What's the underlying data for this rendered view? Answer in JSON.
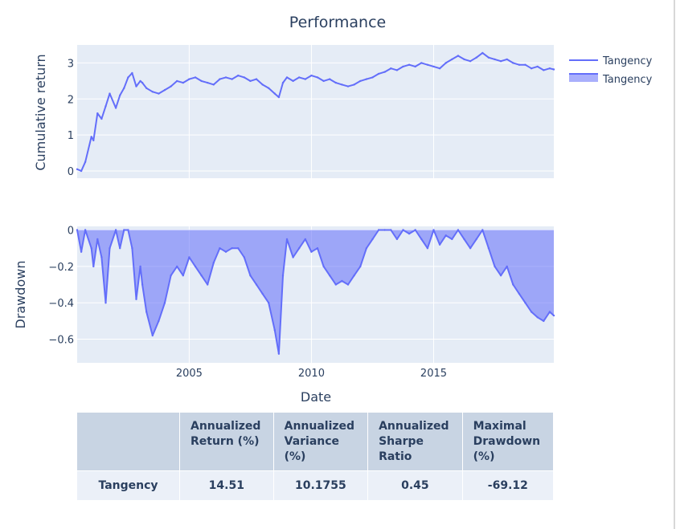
{
  "title": "Performance",
  "colors": {
    "line": "#636efa",
    "fill": "rgba(99,110,250,0.55)",
    "plot_bg": "#e5ecf6",
    "grid": "#ffffff",
    "header_bg": "#c8d4e3",
    "cell_bg": "#ebf0f8"
  },
  "legend": [
    {
      "name": "Tangency",
      "icon": "line-legend-icon"
    },
    {
      "name": "Tangency",
      "icon": "area-legend-icon"
    }
  ],
  "chart_data": [
    {
      "type": "line",
      "ylabel": "Cumulative return",
      "xlabel": "",
      "xlim": [
        "2000-06",
        "2019-12"
      ],
      "ylim": [
        -0.2,
        3.5
      ],
      "yticks": [
        0,
        1,
        2,
        3
      ],
      "series": [
        {
          "name": "Tangency",
          "x": [
            "2000-06",
            "2000-08",
            "2000-10",
            "2001-01",
            "2001-02",
            "2001-04",
            "2001-06",
            "2001-08",
            "2001-10",
            "2002-01",
            "2002-03",
            "2002-05",
            "2002-07",
            "2002-09",
            "2002-11",
            "2003-01",
            "2003-02",
            "2003-04",
            "2003-07",
            "2003-10",
            "2004-01",
            "2004-04",
            "2004-07",
            "2004-10",
            "2005-01",
            "2005-04",
            "2005-07",
            "2005-10",
            "2006-01",
            "2006-04",
            "2006-07",
            "2006-10",
            "2007-01",
            "2007-04",
            "2007-07",
            "2007-10",
            "2008-01",
            "2008-04",
            "2008-07",
            "2008-09",
            "2008-11",
            "2009-01",
            "2009-04",
            "2009-07",
            "2009-10",
            "2010-01",
            "2010-04",
            "2010-07",
            "2010-10",
            "2011-01",
            "2011-04",
            "2011-07",
            "2011-10",
            "2012-01",
            "2012-04",
            "2012-07",
            "2012-10",
            "2013-01",
            "2013-04",
            "2013-07",
            "2013-10",
            "2014-01",
            "2014-04",
            "2014-07",
            "2014-10",
            "2015-01",
            "2015-04",
            "2015-07",
            "2015-10",
            "2016-01",
            "2016-04",
            "2016-07",
            "2016-10",
            "2017-01",
            "2017-04",
            "2017-07",
            "2017-10",
            "2018-01",
            "2018-04",
            "2018-07",
            "2018-10",
            "2019-01",
            "2019-04",
            "2019-07",
            "2019-10",
            "2019-12"
          ],
          "y": [
            0.05,
            0.0,
            0.25,
            0.95,
            0.85,
            1.6,
            1.45,
            1.8,
            2.15,
            1.75,
            2.1,
            2.3,
            2.6,
            2.72,
            2.35,
            2.5,
            2.45,
            2.3,
            2.2,
            2.15,
            2.25,
            2.35,
            2.5,
            2.45,
            2.55,
            2.6,
            2.5,
            2.45,
            2.4,
            2.55,
            2.6,
            2.55,
            2.65,
            2.6,
            2.5,
            2.55,
            2.4,
            2.3,
            2.15,
            2.05,
            2.45,
            2.6,
            2.5,
            2.6,
            2.55,
            2.65,
            2.6,
            2.5,
            2.55,
            2.45,
            2.4,
            2.35,
            2.4,
            2.5,
            2.55,
            2.6,
            2.7,
            2.75,
            2.85,
            2.8,
            2.9,
            2.95,
            2.9,
            3.0,
            2.95,
            2.9,
            2.85,
            3.0,
            3.1,
            3.2,
            3.1,
            3.05,
            3.15,
            3.28,
            3.15,
            3.1,
            3.05,
            3.1,
            3.0,
            2.95,
            2.95,
            2.85,
            2.9,
            2.8,
            2.85,
            2.82
          ]
        }
      ]
    },
    {
      "type": "area",
      "ylabel": "Drawdown",
      "xlabel": "Date",
      "xlim": [
        "2000-06",
        "2019-12"
      ],
      "ylim": [
        -0.73,
        0.02
      ],
      "yticks": [
        0,
        -0.2,
        -0.4,
        -0.6
      ],
      "yticklabels": [
        "0",
        "−0.2",
        "−0.4",
        "−0.6"
      ],
      "xticks": [
        "2005-01",
        "2010-01",
        "2015-01"
      ],
      "xticklabels": [
        "2005",
        "2010",
        "2015"
      ],
      "series": [
        {
          "name": "Tangency",
          "x": [
            "2000-06",
            "2000-08",
            "2000-10",
            "2001-01",
            "2001-02",
            "2001-04",
            "2001-06",
            "2001-08",
            "2001-10",
            "2002-01",
            "2002-03",
            "2002-05",
            "2002-07",
            "2002-09",
            "2002-11",
            "2003-01",
            "2003-02",
            "2003-04",
            "2003-07",
            "2003-10",
            "2004-01",
            "2004-04",
            "2004-07",
            "2004-10",
            "2005-01",
            "2005-04",
            "2005-07",
            "2005-10",
            "2006-01",
            "2006-04",
            "2006-07",
            "2006-10",
            "2007-01",
            "2007-04",
            "2007-07",
            "2007-10",
            "2008-01",
            "2008-04",
            "2008-07",
            "2008-09",
            "2008-11",
            "2009-01",
            "2009-04",
            "2009-07",
            "2009-10",
            "2010-01",
            "2010-04",
            "2010-07",
            "2010-10",
            "2011-01",
            "2011-04",
            "2011-07",
            "2011-10",
            "2012-01",
            "2012-04",
            "2012-07",
            "2012-10",
            "2013-01",
            "2013-04",
            "2013-07",
            "2013-10",
            "2014-01",
            "2014-04",
            "2014-07",
            "2014-10",
            "2015-01",
            "2015-04",
            "2015-07",
            "2015-10",
            "2016-01",
            "2016-04",
            "2016-07",
            "2016-10",
            "2017-01",
            "2017-04",
            "2017-07",
            "2017-10",
            "2018-01",
            "2018-04",
            "2018-07",
            "2018-10",
            "2019-01",
            "2019-04",
            "2019-07",
            "2019-10",
            "2019-12"
          ],
          "y": [
            0,
            -0.12,
            0,
            -0.1,
            -0.2,
            -0.05,
            -0.15,
            -0.4,
            -0.1,
            0,
            -0.1,
            0,
            0,
            -0.1,
            -0.38,
            -0.2,
            -0.3,
            -0.45,
            -0.58,
            -0.5,
            -0.4,
            -0.25,
            -0.2,
            -0.25,
            -0.15,
            -0.2,
            -0.25,
            -0.3,
            -0.18,
            -0.1,
            -0.12,
            -0.1,
            -0.1,
            -0.15,
            -0.25,
            -0.3,
            -0.35,
            -0.4,
            -0.55,
            -0.68,
            -0.25,
            -0.05,
            -0.15,
            -0.1,
            -0.05,
            -0.12,
            -0.1,
            -0.2,
            -0.25,
            -0.3,
            -0.28,
            -0.3,
            -0.25,
            -0.2,
            -0.1,
            -0.05,
            0,
            0,
            0,
            -0.05,
            0,
            -0.02,
            0,
            -0.05,
            -0.1,
            0,
            -0.08,
            -0.03,
            -0.05,
            0,
            -0.05,
            -0.1,
            -0.05,
            0,
            -0.1,
            -0.2,
            -0.25,
            -0.2,
            -0.3,
            -0.35,
            -0.4,
            -0.45,
            -0.48,
            -0.5,
            -0.45,
            -0.47
          ]
        }
      ]
    }
  ],
  "table": {
    "headers": [
      "",
      "Annualized Return (%)",
      "Annualized Variance (%)",
      "Annualized Sharpe Ratio",
      "Maximal Drawdown (%)"
    ],
    "rows": [
      {
        "label": "Tangency",
        "values": [
          "14.51",
          "10.1755",
          "0.45",
          "-69.12"
        ]
      }
    ]
  }
}
